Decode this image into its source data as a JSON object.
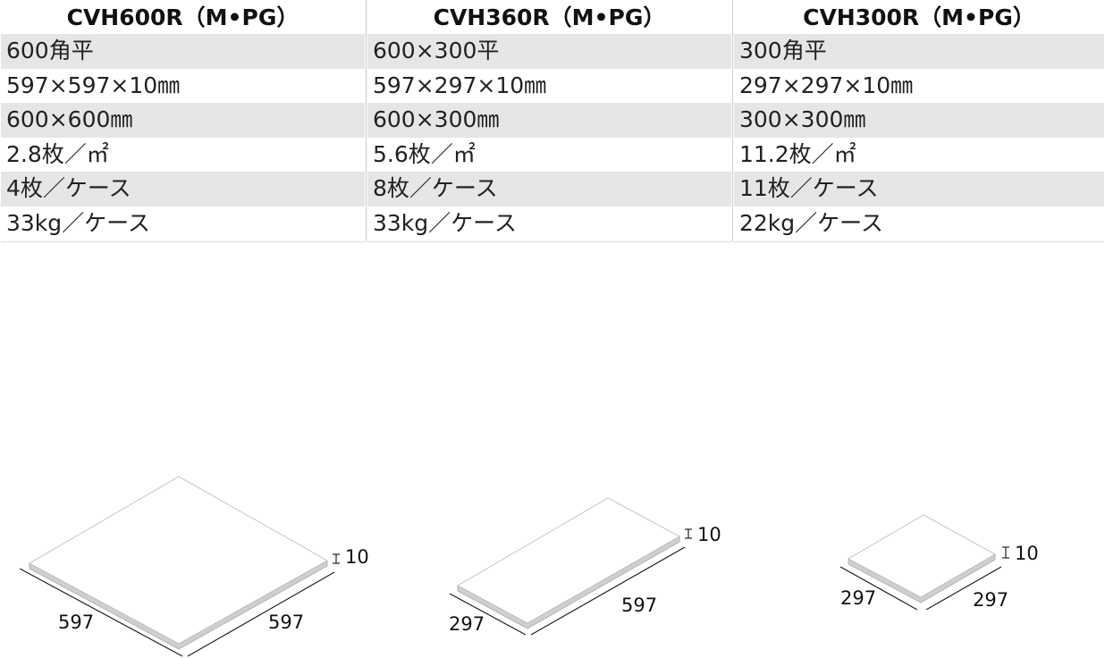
{
  "table": {
    "columns": [
      {
        "header": "CVH600R（M•PG）",
        "rows": [
          "600角平",
          "597×597×10㎜",
          "600×600㎜",
          "2.8枚／㎡",
          "4枚／ケース",
          "33kg／ケース"
        ]
      },
      {
        "header": "CVH360R（M•PG）",
        "rows": [
          "600×300平",
          "597×297×10㎜",
          "600×300㎜",
          "5.6枚／㎡",
          "8枚／ケース",
          "33kg／ケース"
        ]
      },
      {
        "header": "CVH300R（M•PG）",
        "rows": [
          "300角平",
          "297×297×10㎜",
          "300×300㎜",
          "11.2枚／㎡",
          "11枚／ケース",
          "22kg／ケース"
        ]
      }
    ]
  },
  "diagrams": [
    {
      "left": "597",
      "right": "597",
      "thickness": "10"
    },
    {
      "left": "297",
      "right": "597",
      "thickness": "10"
    },
    {
      "left": "297",
      "right": "297",
      "thickness": "10"
    }
  ]
}
